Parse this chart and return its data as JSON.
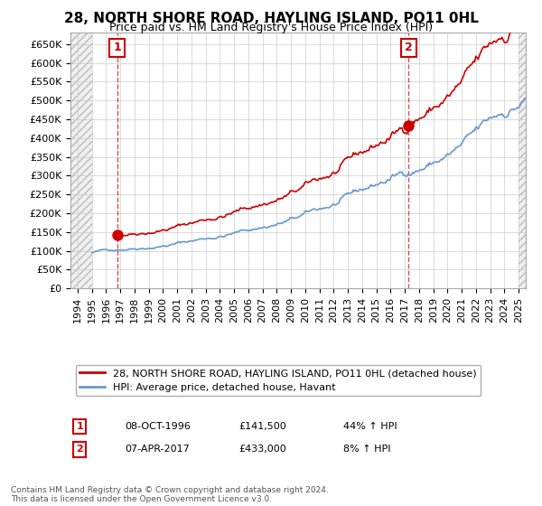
{
  "title": "28, NORTH SHORE ROAD, HAYLING ISLAND, PO11 0HL",
  "subtitle": "Price paid vs. HM Land Registry's House Price Index (HPI)",
  "legend_line1": "28, NORTH SHORE ROAD, HAYLING ISLAND, PO11 0HL (detached house)",
  "legend_line2": "HPI: Average price, detached house, Havant",
  "footnote": "Contains HM Land Registry data © Crown copyright and database right 2024.\nThis data is licensed under the Open Government Licence v3.0.",
  "sale1_date": "08-OCT-1996",
  "sale1_price": 141500,
  "sale1_label": "44% ↑ HPI",
  "sale2_date": "07-APR-2017",
  "sale2_price": 433000,
  "sale2_label": "8% ↑ HPI",
  "sale1_x": 1996.77,
  "sale2_x": 2017.27,
  "red_color": "#cc0000",
  "blue_color": "#6699cc",
  "ylim": [
    0,
    680000
  ],
  "xlim_left": 1993.5,
  "xlim_right": 2025.5
}
